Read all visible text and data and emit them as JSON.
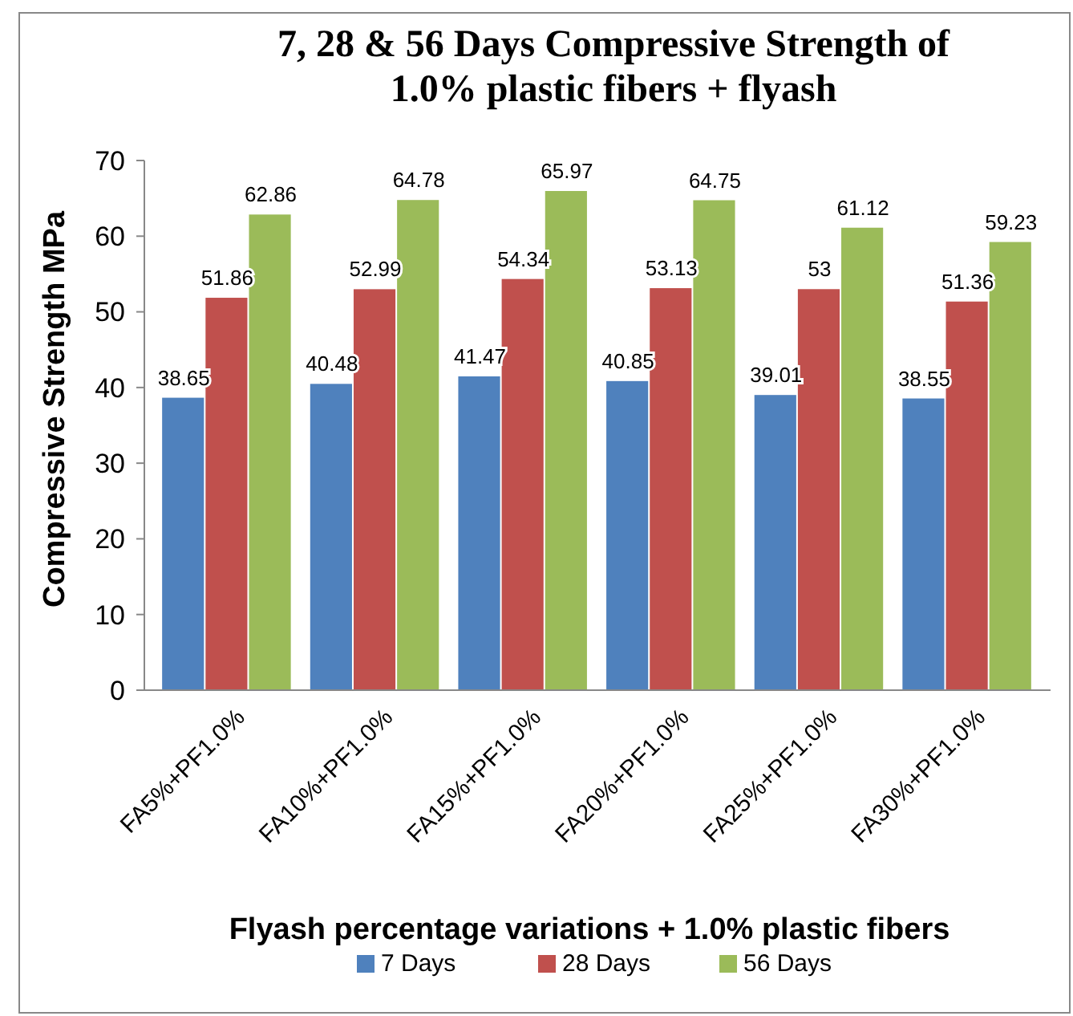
{
  "chart_data": {
    "type": "bar",
    "title": "7, 28 & 56 Days Compressive Strength of\n1.0% plastic fibers + flyash",
    "xlabel": "Flyash percentage variations + 1.0% plastic fibers",
    "ylabel": "Compressive Strength MPa",
    "categories": [
      "FA5%+PF1.0%",
      "FA10%+PF1.0%",
      "FA15%+PF1.0%",
      "FA20%+PF1.0%",
      "FA25%+PF1.0%",
      "FA30%+PF1.0%"
    ],
    "series": [
      {
        "name": "7 Days",
        "color": "#4f81bd",
        "values": [
          38.65,
          40.48,
          41.47,
          40.85,
          39.01,
          38.55
        ]
      },
      {
        "name": "28 Days",
        "color": "#c0504d",
        "values": [
          51.86,
          52.99,
          54.34,
          53.13,
          53,
          51.36
        ]
      },
      {
        "name": "56 Days",
        "color": "#9bbb59",
        "values": [
          62.86,
          64.78,
          65.97,
          64.75,
          61.12,
          59.23
        ]
      }
    ],
    "ylim": [
      0,
      70
    ],
    "yticks": [
      0,
      10,
      20,
      30,
      40,
      50,
      60,
      70
    ],
    "grid": false,
    "legend": "bottom",
    "data_labels": true
  }
}
